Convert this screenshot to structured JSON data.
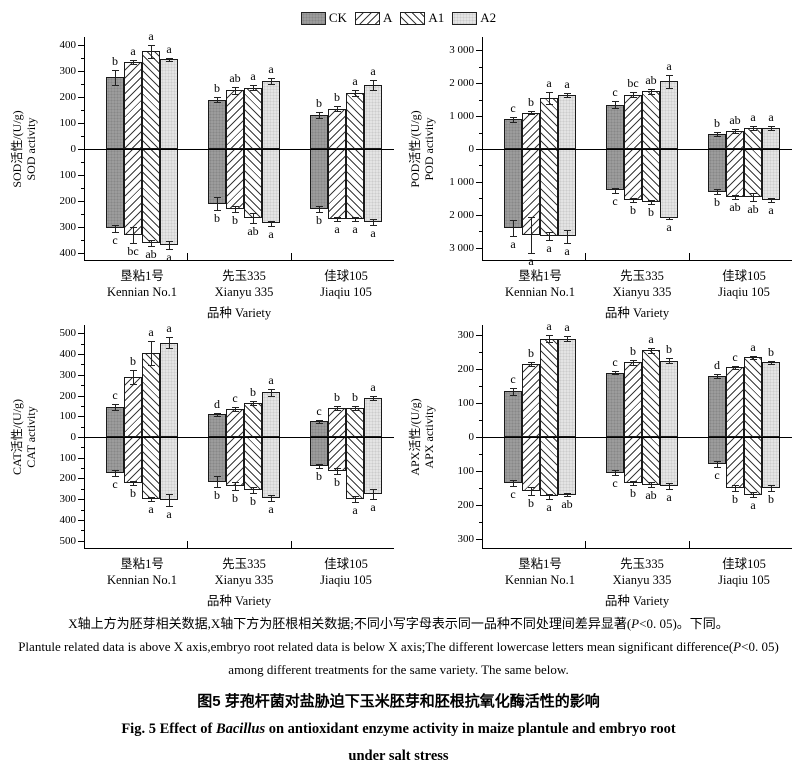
{
  "legend": {
    "items": [
      {
        "label": "CK",
        "pattern": "ck"
      },
      {
        "label": "A",
        "pattern": "a"
      },
      {
        "label": "A1",
        "pattern": "a1"
      },
      {
        "label": "A2",
        "pattern": "a2"
      }
    ]
  },
  "shared": {
    "categories_cn": [
      "垦粘1号",
      "先玉335",
      "佳球105"
    ],
    "categories_en": [
      "Kennian No.1",
      "Xianyu 335",
      "Jiaqiu 105"
    ],
    "xlabel_cn": "品种",
    "xlabel_en": "Variety",
    "above_meaning": "plantule",
    "below_meaning": "embryo root"
  },
  "colors": {
    "bar_border": "#1a1a1a",
    "ck_fill": "#9c9c9c",
    "a2_fill": "#e4e4e4",
    "hatch": "#3a3a3a",
    "axis": "#000000"
  },
  "chart_data": [
    {
      "type": "bar",
      "id": "sod",
      "ylabel_cn": "SOD活性/(U/g)",
      "ylabel_en": "SOD activity",
      "ticks": [
        0,
        100,
        200,
        300,
        400
      ],
      "tick_labels": [
        "0",
        "100",
        "200",
        "300",
        "400"
      ],
      "ymax": 430,
      "categories": [
        "Kennian No.1",
        "Xianyu 335",
        "Jiaqiu 105"
      ],
      "series": [
        {
          "name": "CK",
          "above": [
            275,
            190,
            130
          ],
          "above_letters": [
            "b",
            "b",
            "b"
          ],
          "above_err": [
            30,
            8,
            12
          ],
          "below": [
            305,
            210,
            230
          ],
          "below_letters": [
            "c",
            "b",
            "b"
          ],
          "below_err": [
            15,
            25,
            12
          ]
        },
        {
          "name": "A",
          "above": [
            335,
            225,
            155
          ],
          "above_letters": [
            "a",
            "ab",
            "b"
          ],
          "above_err": [
            8,
            12,
            10
          ],
          "below": [
            330,
            230,
            270
          ],
          "below_letters": [
            "bc",
            "b",
            "a"
          ],
          "below_err": [
            30,
            10,
            8
          ]
        },
        {
          "name": "A1",
          "above": [
            375,
            235,
            215
          ],
          "above_letters": [
            "a",
            "a",
            "a"
          ],
          "above_err": [
            25,
            10,
            12
          ],
          "below": [
            360,
            265,
            270
          ],
          "below_letters": [
            "ab",
            "ab",
            "a"
          ],
          "below_err": [
            12,
            18,
            8
          ]
        },
        {
          "name": "A2",
          "above": [
            345,
            260,
            245
          ],
          "above_letters": [
            "a",
            "a",
            "a"
          ],
          "above_err": [
            6,
            12,
            20
          ],
          "below": [
            370,
            285,
            280
          ],
          "below_letters": [
            "a",
            "a",
            "a"
          ],
          "below_err": [
            15,
            10,
            10
          ]
        }
      ]
    },
    {
      "type": "bar",
      "id": "pod",
      "ylabel_cn": "POD活性/(U/g)",
      "ylabel_en": "POD activity",
      "ticks": [
        0,
        1000,
        2000,
        3000
      ],
      "tick_labels": [
        "0",
        "1 000",
        "2 000",
        "3 000"
      ],
      "ymax": 3400,
      "categories": [
        "Kennian No.1",
        "Xianyu 335",
        "Jiaqiu 105"
      ],
      "series": [
        {
          "name": "CK",
          "above": [
            900,
            1350,
            450
          ],
          "above_letters": [
            "c",
            "c",
            "b"
          ],
          "above_err": [
            70,
            110,
            60
          ],
          "below": [
            2400,
            1250,
            1300
          ],
          "below_letters": [
            "a",
            "c",
            "b"
          ],
          "below_err": [
            250,
            80,
            80
          ]
        },
        {
          "name": "A",
          "above": [
            1100,
            1650,
            550
          ],
          "above_letters": [
            "b",
            "bc",
            "ab"
          ],
          "above_err": [
            50,
            80,
            60
          ],
          "below": [
            2600,
            1550,
            1450
          ],
          "below_letters": [
            "a",
            "b",
            "ab"
          ],
          "below_err": [
            550,
            60,
            60
          ]
        },
        {
          "name": "A1",
          "above": [
            1550,
            1750,
            650
          ],
          "above_letters": [
            "a",
            "ab",
            "a"
          ],
          "above_err": [
            180,
            80,
            60
          ],
          "below": [
            2650,
            1600,
            1450
          ],
          "below_letters": [
            "a",
            "b",
            "ab"
          ],
          "below_err": [
            120,
            60,
            120
          ]
        },
        {
          "name": "A2",
          "above": [
            1650,
            2050,
            650
          ],
          "above_letters": [
            "a",
            "a",
            "a"
          ],
          "above_err": [
            60,
            200,
            60
          ],
          "below": [
            2650,
            2100,
            1550
          ],
          "below_letters": [
            "a",
            "a",
            "a"
          ],
          "below_err": [
            200,
            40,
            60
          ]
        }
      ]
    },
    {
      "type": "bar",
      "id": "cat",
      "ylabel_cn": "CAT活性/(U/g)",
      "ylabel_en": "CAT activity",
      "ticks": [
        0,
        100,
        200,
        300,
        400,
        500
      ],
      "tick_labels": [
        "0",
        "100",
        "200",
        "300",
        "400",
        "500"
      ],
      "ymax": 540,
      "categories": [
        "Kennian No.1",
        "Xianyu 335",
        "Jiaqiu 105"
      ],
      "series": [
        {
          "name": "CK",
          "above": [
            145,
            110,
            75
          ],
          "above_letters": [
            "c",
            "d",
            "c"
          ],
          "above_err": [
            15,
            8,
            8
          ],
          "below": [
            175,
            215,
            140
          ],
          "below_letters": [
            "c",
            "b",
            "b"
          ],
          "below_err": [
            15,
            25,
            10
          ]
        },
        {
          "name": "A",
          "above": [
            290,
            135,
            140
          ],
          "above_letters": [
            "b",
            "c",
            "b"
          ],
          "above_err": [
            35,
            10,
            10
          ],
          "below": [
            220,
            235,
            165
          ],
          "below_letters": [
            "b",
            "b",
            "b"
          ],
          "below_err": [
            10,
            20,
            15
          ]
        },
        {
          "name": "A1",
          "above": [
            405,
            165,
            140
          ],
          "above_letters": [
            "a",
            "b",
            "b"
          ],
          "above_err": [
            60,
            10,
            10
          ],
          "below": [
            300,
            255,
            300
          ],
          "below_letters": [
            "a",
            "b",
            "a"
          ],
          "below_err": [
            10,
            15,
            15
          ]
        },
        {
          "name": "A2",
          "above": [
            455,
            215,
            190
          ],
          "above_letters": [
            "a",
            "a",
            "a"
          ],
          "above_err": [
            25,
            15,
            10
          ],
          "below": [
            305,
            295,
            275
          ],
          "below_letters": [
            "a",
            "a",
            "a"
          ],
          "below_err": [
            30,
            15,
            25
          ]
        }
      ]
    },
    {
      "type": "bar",
      "id": "apx",
      "ylabel_cn": "APX活性/(U/g)",
      "ylabel_en": "APX activity",
      "ticks": [
        0,
        100,
        200,
        300
      ],
      "tick_labels": [
        "0",
        "100",
        "200",
        "300"
      ],
      "ymax": 330,
      "categories": [
        "Kennian No.1",
        "Xianyu 335",
        "Jiaqiu 105"
      ],
      "series": [
        {
          "name": "CK",
          "above": [
            135,
            190,
            180
          ],
          "above_letters": [
            "c",
            "c",
            "d"
          ],
          "above_err": [
            10,
            5,
            5
          ],
          "below": [
            135,
            105,
            80
          ],
          "below_letters": [
            "c",
            "c",
            "c"
          ],
          "below_err": [
            8,
            8,
            8
          ]
        },
        {
          "name": "A",
          "above": [
            215,
            220,
            205
          ],
          "above_letters": [
            "b",
            "b",
            "c"
          ],
          "above_err": [
            5,
            8,
            5
          ],
          "below": [
            160,
            135,
            150
          ],
          "below_letters": [
            "b",
            "b",
            "b"
          ],
          "below_err": [
            12,
            5,
            10
          ]
        },
        {
          "name": "A1",
          "above": [
            290,
            255,
            235
          ],
          "above_letters": [
            "a",
            "a",
            "a"
          ],
          "above_err": [
            10,
            8,
            5
          ],
          "below": [
            175,
            140,
            170
          ],
          "below_letters": [
            "a",
            "ab",
            "a"
          ],
          "below_err": [
            8,
            8,
            8
          ]
        },
        {
          "name": "A2",
          "above": [
            290,
            225,
            220
          ],
          "above_letters": [
            "a",
            "b",
            "b"
          ],
          "above_err": [
            8,
            8,
            5
          ],
          "below": [
            170,
            145,
            150
          ],
          "below_letters": [
            "ab",
            "a",
            "b"
          ],
          "below_err": [
            5,
            8,
            10
          ]
        }
      ]
    }
  ],
  "captions": {
    "note_cn": [
      "X轴上方为胚芽相关数据,X轴下方为胚根相关数据;不同小写字母表示同一品种不同处理间差异显著(",
      "P",
      "<0. 05)。下同。"
    ],
    "note_en_1": [
      "Plantule related data is above X axis,embryo root related data is below X axis;The different lowercase letters mean significant difference(",
      "P",
      "<0. 05)"
    ],
    "note_en_2": "among different treatments for the same variety. The same below.",
    "fig_cn": "图5  芽孢杆菌对盐胁迫下玉米胚芽和胚根抗氧化酶活性的影响",
    "fig_en": [
      "Fig. 5  Effect of ",
      "Bacillus",
      " on antioxidant enzyme activity in maize plantule and embryo root"
    ],
    "fig_en_2": "under salt stress"
  }
}
